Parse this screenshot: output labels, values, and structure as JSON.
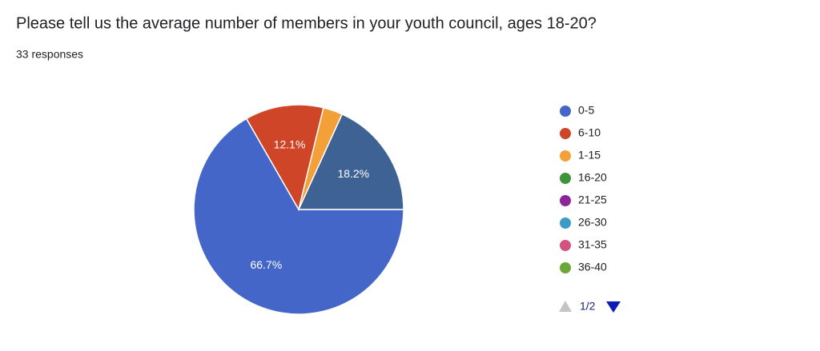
{
  "chart_data": {
    "type": "pie",
    "title": "Please tell us the average number of members in your youth council, ages 18-20?",
    "subtitle": "33 responses",
    "categories": [
      "0-5",
      "6-10",
      "1-15",
      "16-20",
      "21-25",
      "26-30",
      "31-35",
      "36-40",
      null
    ],
    "values": [
      66.7,
      12.1,
      3.0,
      0,
      0,
      0,
      0,
      0,
      18.2
    ],
    "value_labels": [
      "66.7%",
      "12.1%",
      null,
      null,
      null,
      null,
      null,
      null,
      "18.2%"
    ],
    "colors": [
      "#4366c8",
      "#cf4527",
      "#f2a037",
      "#3d943b",
      "#8f2399",
      "#3d9cc7",
      "#d6527e",
      "#6ca735",
      "#3e6293"
    ],
    "legend_page": "1/2"
  }
}
